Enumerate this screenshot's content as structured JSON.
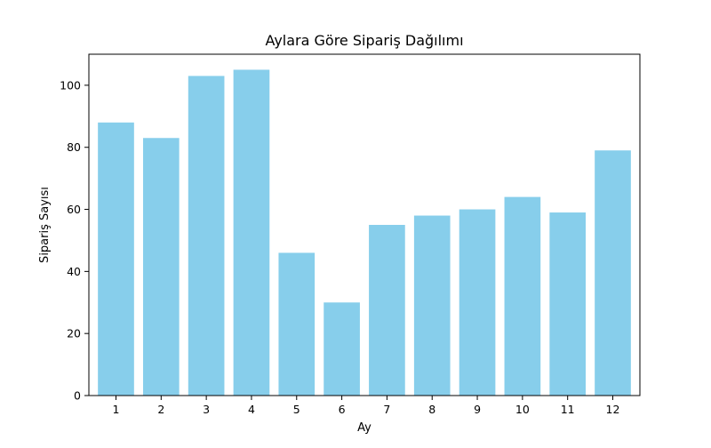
{
  "chart_data": {
    "type": "bar",
    "title": "Aylara Göre Sipariş Dağılımı",
    "xlabel": "Ay",
    "ylabel": "Sipariş Sayısı",
    "categories": [
      "1",
      "2",
      "3",
      "4",
      "5",
      "6",
      "7",
      "8",
      "9",
      "10",
      "11",
      "12"
    ],
    "values": [
      88,
      83,
      103,
      105,
      46,
      30,
      55,
      58,
      60,
      64,
      59,
      79
    ],
    "ylim": [
      0,
      110
    ],
    "yticks": [
      0,
      20,
      40,
      60,
      80,
      100
    ],
    "grid": false,
    "legend": "none",
    "bar_color": "#87ceeb",
    "axis_color": "#000000",
    "background_color": "#ffffff"
  }
}
